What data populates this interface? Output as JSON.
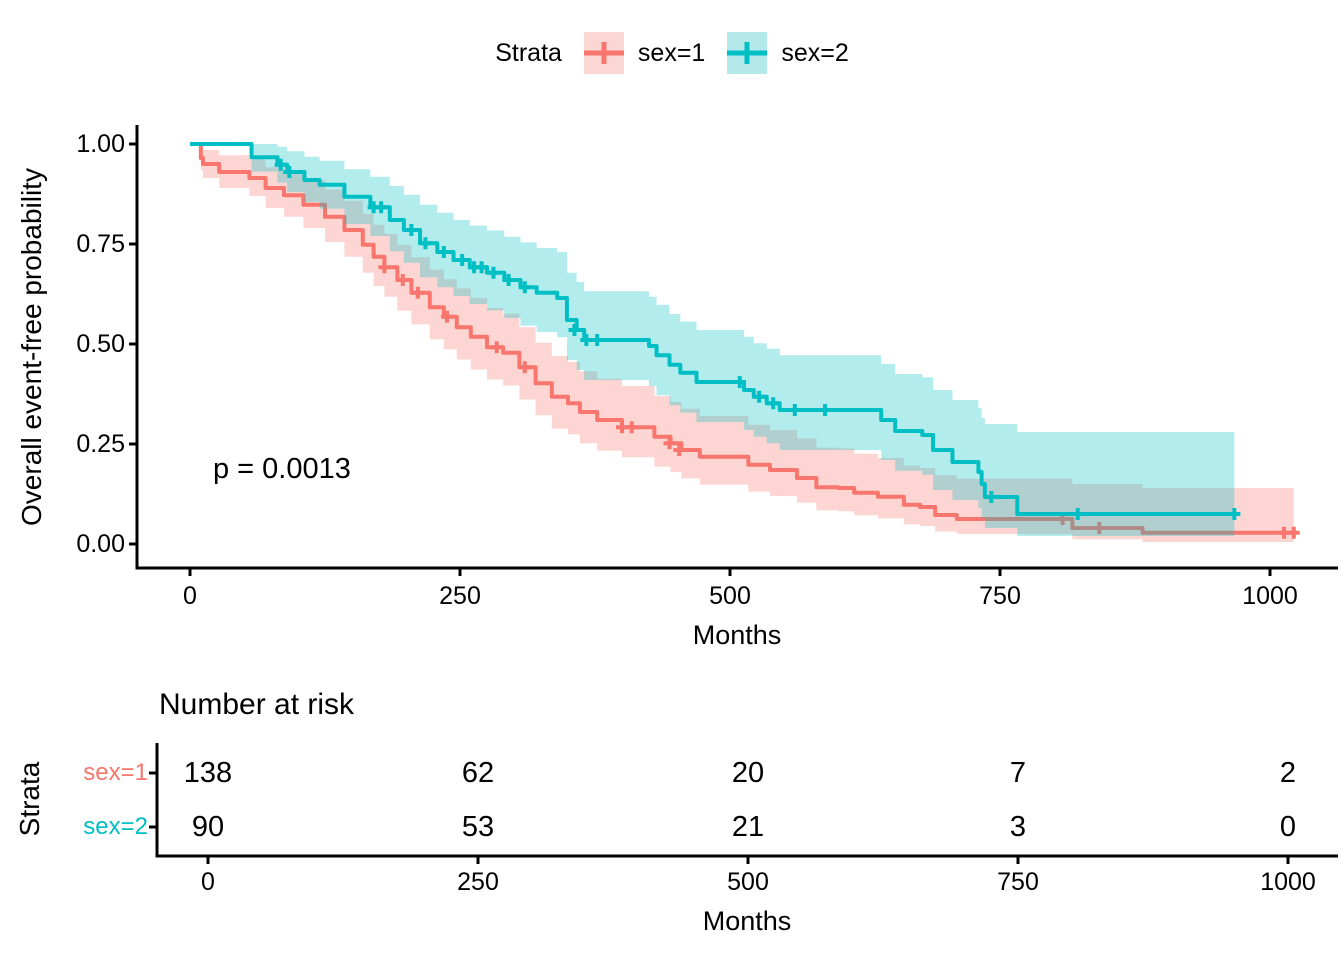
{
  "legend": {
    "title": "Strata",
    "items": [
      {
        "label": "sex=1",
        "color": "#F8766D",
        "key_bg": "#FBD7D4"
      },
      {
        "label": "sex=2",
        "color": "#00BFC4",
        "key_bg": "#B3E9EB"
      }
    ]
  },
  "pvalue": "p = 0.0013",
  "chart_data": {
    "type": "line",
    "subtype": "kaplan-meier-step",
    "title": "",
    "xlabel": "Months",
    "ylabel": "Overall event-free probability",
    "xlim": [
      0,
      1022
    ],
    "ylim": [
      0,
      1
    ],
    "grid": false,
    "legend_position": "top",
    "xticks": {
      "values": [
        0,
        250,
        500,
        750,
        1000
      ],
      "labels": [
        "0",
        "250",
        "500",
        "750",
        "1000"
      ]
    },
    "yticks": {
      "values": [
        1.0,
        0.75,
        0.5,
        0.25,
        0.0
      ],
      "labels": [
        "1.00",
        "0.75",
        "0.50",
        "0.25",
        "0.00"
      ]
    },
    "series": [
      {
        "name": "sex=1",
        "color": "#F8766D",
        "band_alpha": 0.3,
        "points": [
          [
            0,
            1,
            1,
            1
          ],
          [
            10,
            0.965,
            0.935,
            0.995
          ],
          [
            12,
            0.95,
            0.915,
            0.985
          ],
          [
            27,
            0.93,
            0.89,
            0.972
          ],
          [
            55,
            0.915,
            0.87,
            0.962
          ],
          [
            70,
            0.89,
            0.84,
            0.942
          ],
          [
            87,
            0.872,
            0.818,
            0.928
          ],
          [
            105,
            0.848,
            0.79,
            0.91
          ],
          [
            125,
            0.818,
            0.755,
            0.886
          ],
          [
            143,
            0.785,
            0.718,
            0.858
          ],
          [
            160,
            0.748,
            0.678,
            0.825
          ],
          [
            170,
            0.718,
            0.645,
            0.798
          ],
          [
            180,
            0.692,
            0.618,
            0.775
          ],
          [
            192,
            0.66,
            0.583,
            0.748
          ],
          [
            205,
            0.628,
            0.549,
            0.717
          ],
          [
            222,
            0.592,
            0.512,
            0.686
          ],
          [
            235,
            0.568,
            0.487,
            0.662
          ],
          [
            247,
            0.542,
            0.461,
            0.639
          ],
          [
            260,
            0.518,
            0.436,
            0.615
          ],
          [
            275,
            0.492,
            0.411,
            0.59
          ],
          [
            290,
            0.478,
            0.396,
            0.576
          ],
          [
            305,
            0.442,
            0.361,
            0.542
          ],
          [
            320,
            0.402,
            0.322,
            0.503
          ],
          [
            335,
            0.368,
            0.288,
            0.47
          ],
          [
            350,
            0.352,
            0.274,
            0.455
          ],
          [
            361,
            0.33,
            0.252,
            0.432
          ],
          [
            377,
            0.31,
            0.233,
            0.413
          ],
          [
            400,
            0.292,
            0.217,
            0.395
          ],
          [
            430,
            0.268,
            0.193,
            0.37
          ],
          [
            445,
            0.252,
            0.18,
            0.355
          ],
          [
            455,
            0.235,
            0.164,
            0.338
          ],
          [
            472,
            0.218,
            0.148,
            0.32
          ],
          [
            517,
            0.198,
            0.131,
            0.298
          ],
          [
            537,
            0.185,
            0.12,
            0.285
          ],
          [
            562,
            0.165,
            0.103,
            0.264
          ],
          [
            580,
            0.142,
            0.084,
            0.241
          ],
          [
            600,
            0.14,
            0.082,
            0.239
          ],
          [
            615,
            0.128,
            0.072,
            0.226
          ],
          [
            637,
            0.118,
            0.064,
            0.215
          ],
          [
            661,
            0.098,
            0.049,
            0.196
          ],
          [
            676,
            0.0925,
            0.045,
            0.19
          ],
          [
            690,
            0.0725,
            0.031,
            0.172
          ],
          [
            710,
            0.0625,
            0.025,
            0.163
          ],
          [
            817,
            0.04,
            0.012,
            0.15
          ],
          [
            882,
            0.028,
            0.005,
            0.14
          ],
          [
            1022,
            0.028,
            0.005,
            0.14
          ]
        ],
        "censors": [
          [
            180,
            0.692
          ],
          [
            197,
            0.66
          ],
          [
            211,
            0.628
          ],
          [
            238,
            0.568
          ],
          [
            284,
            0.492
          ],
          [
            310,
            0.442
          ],
          [
            400,
            0.292
          ],
          [
            409,
            0.292
          ],
          [
            444,
            0.252
          ],
          [
            453,
            0.235
          ],
          [
            808,
            0.0625
          ],
          [
            842,
            0.04
          ],
          [
            1013,
            0.028
          ],
          [
            1022,
            0.028
          ]
        ]
      },
      {
        "name": "sex=2",
        "color": "#00BFC4",
        "band_alpha": 0.3,
        "points": [
          [
            0,
            1,
            1,
            1
          ],
          [
            57,
            0.967,
            0.931,
            1
          ],
          [
            81,
            0.948,
            0.903,
            0.993
          ],
          [
            90,
            0.93,
            0.88,
            0.982
          ],
          [
            106,
            0.91,
            0.855,
            0.968
          ],
          [
            120,
            0.898,
            0.838,
            0.958
          ],
          [
            143,
            0.868,
            0.8,
            0.937
          ],
          [
            167,
            0.842,
            0.77,
            0.918
          ],
          [
            185,
            0.81,
            0.732,
            0.895
          ],
          [
            198,
            0.785,
            0.703,
            0.873
          ],
          [
            213,
            0.752,
            0.667,
            0.848
          ],
          [
            229,
            0.73,
            0.642,
            0.828
          ],
          [
            244,
            0.71,
            0.62,
            0.81
          ],
          [
            259,
            0.692,
            0.6,
            0.796
          ],
          [
            275,
            0.678,
            0.584,
            0.784
          ],
          [
            291,
            0.66,
            0.565,
            0.768
          ],
          [
            306,
            0.642,
            0.546,
            0.754
          ],
          [
            321,
            0.628,
            0.53,
            0.74
          ],
          [
            340,
            0.615,
            0.517,
            0.73
          ],
          [
            349,
            0.56,
            0.46,
            0.678
          ],
          [
            358,
            0.535,
            0.435,
            0.655
          ],
          [
            365,
            0.51,
            0.41,
            0.632
          ],
          [
            425,
            0.495,
            0.395,
            0.618
          ],
          [
            432,
            0.472,
            0.372,
            0.598
          ],
          [
            444,
            0.448,
            0.347,
            0.575
          ],
          [
            454,
            0.428,
            0.328,
            0.556
          ],
          [
            469,
            0.405,
            0.305,
            0.535
          ],
          [
            513,
            0.385,
            0.285,
            0.518
          ],
          [
            522,
            0.368,
            0.268,
            0.502
          ],
          [
            534,
            0.352,
            0.252,
            0.488
          ],
          [
            546,
            0.335,
            0.235,
            0.472
          ],
          [
            640,
            0.31,
            0.21,
            0.45
          ],
          [
            653,
            0.2825,
            0.183,
            0.425
          ],
          [
            678,
            0.2725,
            0.173,
            0.417
          ],
          [
            688,
            0.235,
            0.135,
            0.385
          ],
          [
            706,
            0.205,
            0.11,
            0.36
          ],
          [
            730,
            0.18,
            0.09,
            0.34
          ],
          [
            733,
            0.15,
            0.065,
            0.315
          ],
          [
            736,
            0.1175,
            0.04,
            0.3
          ],
          [
            766,
            0.075,
            0.02,
            0.28
          ],
          [
            967,
            0.075,
            0.02,
            0.28
          ]
        ],
        "censors": [
          [
            84,
            0.948
          ],
          [
            92,
            0.93
          ],
          [
            170,
            0.842
          ],
          [
            177,
            0.842
          ],
          [
            205,
            0.785
          ],
          [
            218,
            0.752
          ],
          [
            235,
            0.73
          ],
          [
            252,
            0.71
          ],
          [
            263,
            0.692
          ],
          [
            270,
            0.692
          ],
          [
            281,
            0.678
          ],
          [
            295,
            0.66
          ],
          [
            310,
            0.642
          ],
          [
            356,
            0.535
          ],
          [
            367,
            0.51
          ],
          [
            377,
            0.51
          ],
          [
            509,
            0.405
          ],
          [
            527,
            0.368
          ],
          [
            540,
            0.352
          ],
          [
            560,
            0.335
          ],
          [
            588,
            0.335
          ],
          [
            742,
            0.1175
          ],
          [
            822,
            0.075
          ],
          [
            967,
            0.075
          ]
        ]
      }
    ]
  },
  "risk_table": {
    "title": "Number at risk",
    "ylabel": "Strata",
    "xlabel": "Months",
    "xticks": {
      "values": [
        0,
        250,
        500,
        750,
        1000
      ],
      "labels": [
        "0",
        "250",
        "500",
        "750",
        "1000"
      ]
    },
    "rows": [
      {
        "label": "sex=1",
        "color": "#F8766D",
        "values": [
          "138",
          "62",
          "20",
          "7",
          "2"
        ]
      },
      {
        "label": "sex=2",
        "color": "#00BFC4",
        "values": [
          "90",
          "53",
          "21",
          "3",
          "0"
        ]
      }
    ]
  }
}
